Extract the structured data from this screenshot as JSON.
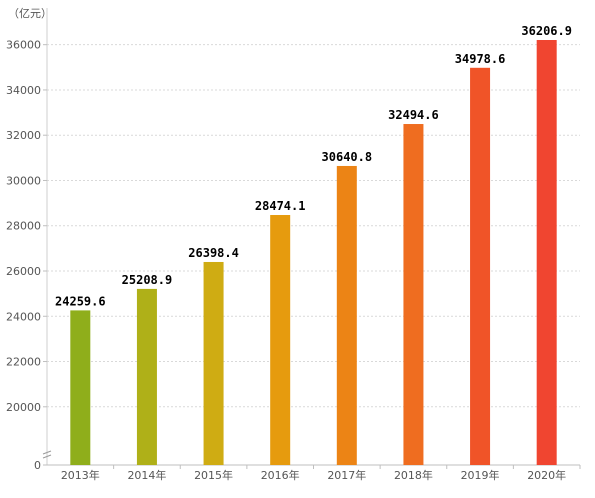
{
  "chart_data": {
    "type": "bar",
    "unit_label": "（亿元）",
    "categories": [
      "2013年",
      "2014年",
      "2015年",
      "2016年",
      "2017年",
      "2018年",
      "2019年",
      "2020年"
    ],
    "values": [
      24259.6,
      25208.9,
      26398.4,
      28474.1,
      30640.8,
      32494.6,
      34978.6,
      36206.9
    ],
    "value_labels": [
      "24259.6",
      "25208.9",
      "26398.4",
      "28474.1",
      "30640.8",
      "32494.6",
      "34978.6",
      "36206.9"
    ],
    "bar_colors": [
      "#8fae1b",
      "#afb018",
      "#cfac13",
      "#e69b0e",
      "#ec8415",
      "#ef6d20",
      "#f05428",
      "#f04530"
    ],
    "y_ticks": [
      "0",
      "20000",
      "22000",
      "24000",
      "26000",
      "28000",
      "30000",
      "32000",
      "34000",
      "36000"
    ],
    "y_tick_values": [
      0,
      20000,
      22000,
      24000,
      26000,
      28000,
      30000,
      32000,
      34000,
      36000
    ],
    "y_axis_break": true,
    "ylim": [
      18400,
      37400
    ],
    "grid": "horizontal-dotted",
    "legend": "none",
    "title": "",
    "xlabel": "",
    "ylabel": ""
  }
}
